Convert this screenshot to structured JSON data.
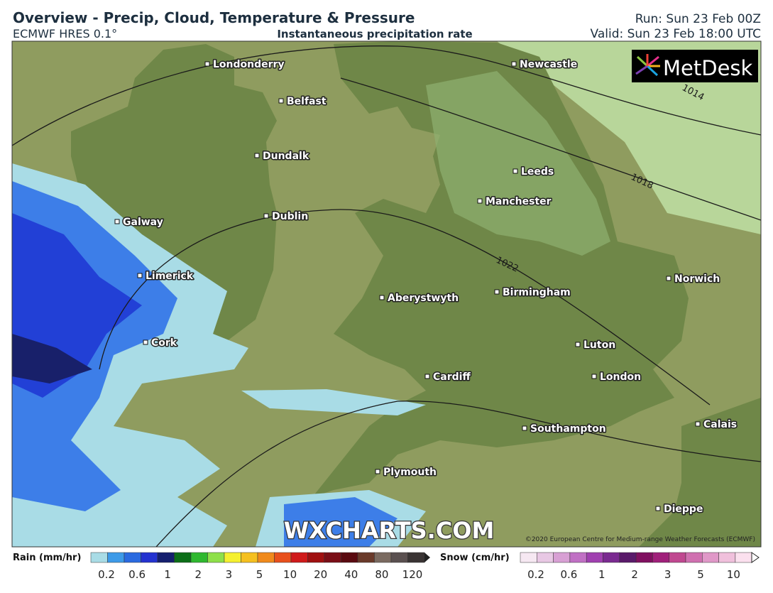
{
  "header": {
    "title": "Overview - Precip, Cloud, Temperature & Pressure",
    "model": "ECMWF HRES 0.1°",
    "subtitle": "Instantaneous precipitation rate",
    "run": "Run: Sun 23 Feb 00Z",
    "valid": "Valid: Sun 23 Feb 18:00 UTC"
  },
  "map": {
    "cities": [
      "Londonderry",
      "Belfast",
      "Newcastle",
      "Dundalk",
      "Leeds",
      "Manchester",
      "Galway",
      "Dublin",
      "Limerick",
      "Norwich",
      "Aberystwyth",
      "Birmingham",
      "Cork",
      "Luton",
      "Cardiff",
      "London",
      "Southampton",
      "Calais",
      "Plymouth",
      "Dieppe"
    ],
    "isobar_labels": [
      1014,
      1018,
      1022
    ],
    "logo": "MetDesk",
    "watermark": "WXCHARTS.COM",
    "copyright": "©2020 European Centre for Medium-range Weather Forecasts (ECMWF)"
  },
  "legend": {
    "rain": {
      "title": "Rain (mm/hr)",
      "ticks": [
        0.2,
        0.6,
        1,
        2,
        3,
        5,
        10,
        20,
        40,
        80,
        120
      ]
    },
    "snow": {
      "title": "Snow (cm/hr)",
      "ticks": [
        0.2,
        0.6,
        1,
        2,
        3,
        5,
        10
      ]
    }
  }
}
